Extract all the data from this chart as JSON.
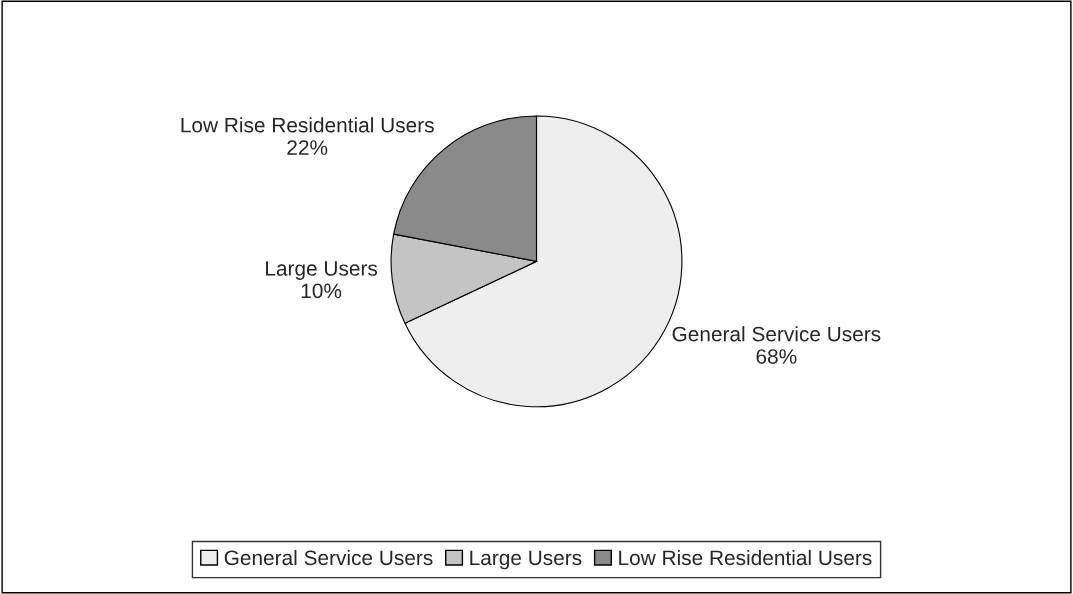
{
  "chart_data": {
    "type": "pie",
    "categories": [
      "General Service Users",
      "Large Users",
      "Low Rise Residential Users"
    ],
    "values": [
      68,
      10,
      22
    ],
    "colors": [
      "#eeeeee",
      "#c4c4c4",
      "#8a8a8a"
    ],
    "value_labels": [
      "68%",
      "10%",
      "22%"
    ],
    "legend": "bottom"
  }
}
